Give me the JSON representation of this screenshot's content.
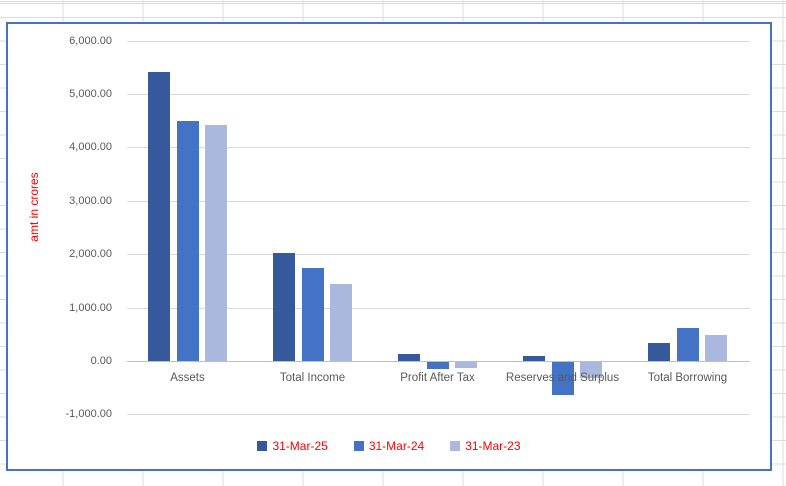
{
  "chart_data": {
    "type": "bar",
    "title": "",
    "xlabel": "",
    "ylabel": "amt in crores",
    "categories": [
      "Assets",
      "Total Income",
      "Profit After Tax",
      "Reserves and Surplus",
      "Total Borrowing"
    ],
    "series": [
      {
        "name": "31-Mar-25",
        "color": "#35599B",
        "values": [
          5420,
          2015,
          140,
          85,
          330
        ]
      },
      {
        "name": "31-Mar-24",
        "color": "#4472C4",
        "values": [
          4500,
          1745,
          -130,
          -620,
          615
        ]
      },
      {
        "name": "31-Mar-23",
        "color": "#A9B8DC",
        "values": [
          4420,
          1445,
          -110,
          -295,
          490
        ]
      }
    ],
    "ylim": [
      -1000,
      6000
    ],
    "ytick_step": 1000,
    "ytick_labels": [
      "6,000.00",
      "5,000.00",
      "4,000.00",
      "3,000.00",
      "2,000.00",
      "1,000.00",
      "0.00",
      "-1,000.00"
    ],
    "grid": true,
    "legend_position": "bottom",
    "colors": {
      "axis_text": "#595959",
      "category_text": "#595959",
      "gridline": "#D9D9D9",
      "zero_axis_line": "#BFBFBF",
      "legend_text": "#FF0000",
      "y_title_text": "#FF0000",
      "chart_border": "#4472C4",
      "chart_background": "#FFFFFF"
    }
  }
}
